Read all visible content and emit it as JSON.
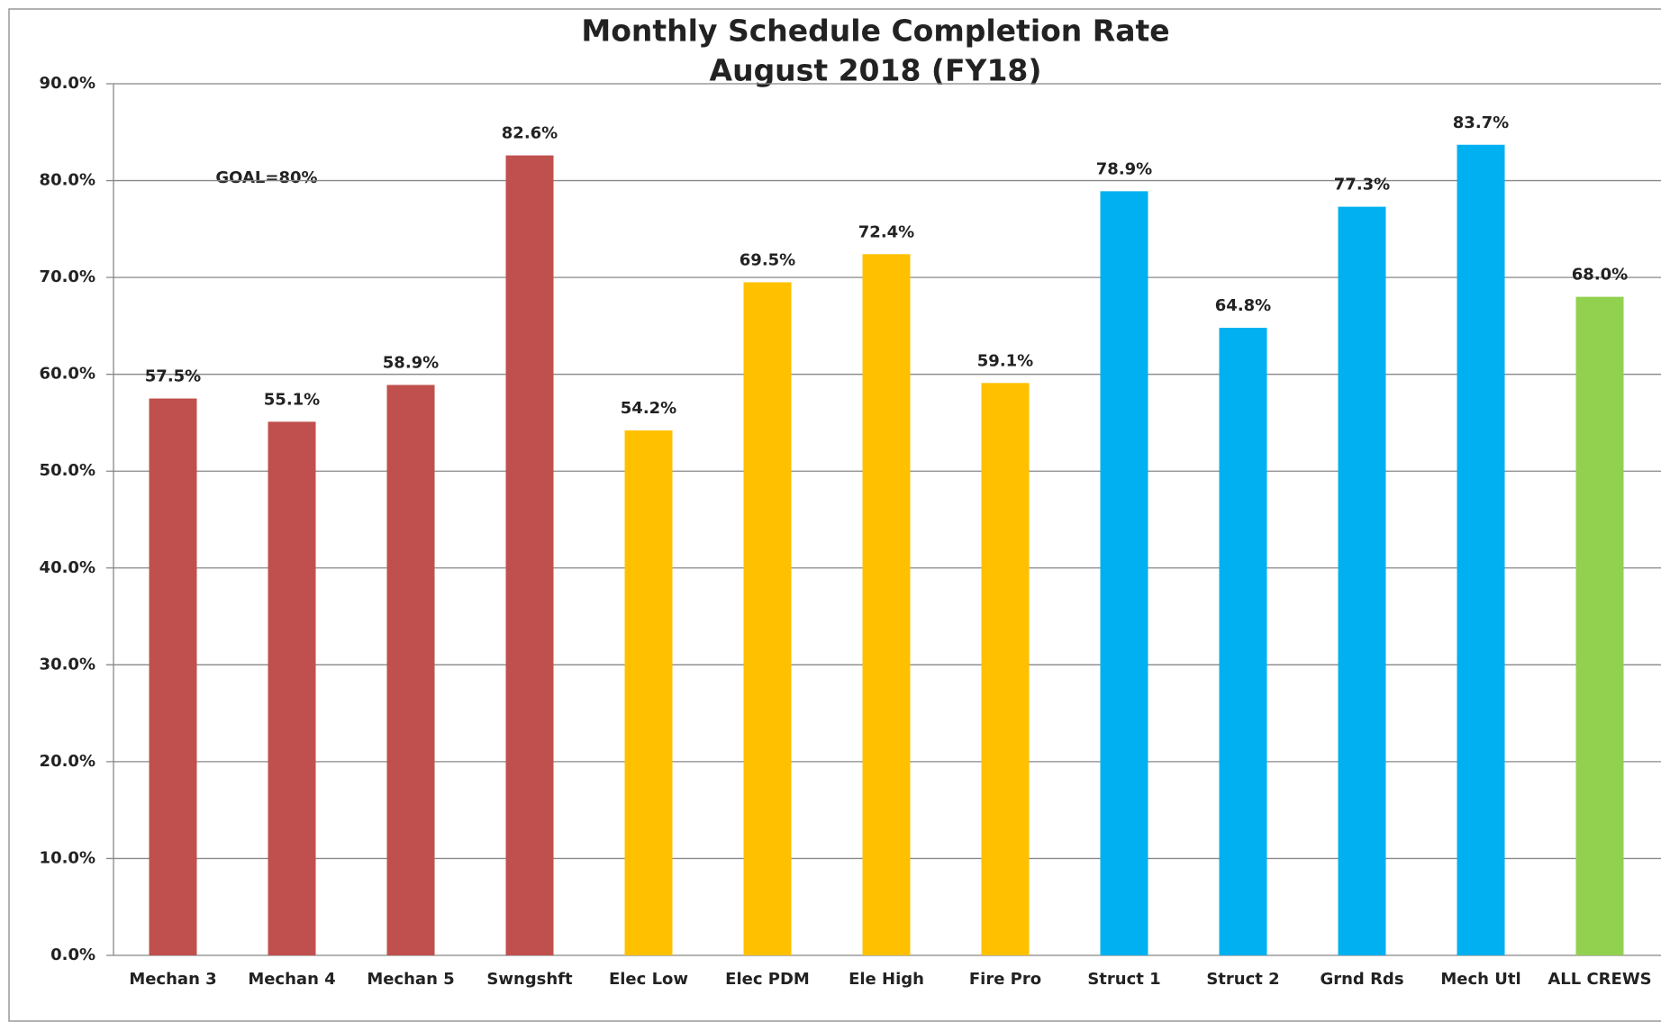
{
  "chart_data": {
    "type": "bar",
    "title": "Monthly Schedule Completion Rate",
    "subtitle": "August 2018 (FY18)",
    "annotation": "GOAL=80%",
    "categories": [
      "Mechan 3",
      "Mechan 4",
      "Mechan 5",
      "Swngshft",
      "Elec Low",
      "Elec PDM",
      "Ele High",
      "Fire Pro",
      "Struct 1",
      "Struct 2",
      "Grnd Rds",
      "Mech Utl",
      "ALL CREWS"
    ],
    "values": [
      57.5,
      55.1,
      58.9,
      82.6,
      54.2,
      69.5,
      72.4,
      59.1,
      78.9,
      64.8,
      77.3,
      83.7,
      68.0
    ],
    "value_labels": [
      "57.5%",
      "55.1%",
      "58.9%",
      "82.6%",
      "54.2%",
      "69.5%",
      "72.4%",
      "59.1%",
      "78.9%",
      "64.8%",
      "77.3%",
      "83.7%",
      "68.0%"
    ],
    "colors": [
      "#c0504d",
      "#c0504d",
      "#c0504d",
      "#c0504d",
      "#ffc000",
      "#ffc000",
      "#ffc000",
      "#ffc000",
      "#00b0f0",
      "#00b0f0",
      "#00b0f0",
      "#00b0f0",
      "#92d050"
    ],
    "ylim": [
      0,
      90
    ],
    "yticks": [
      {
        "value": 0,
        "label": "0.0%"
      },
      {
        "value": 10,
        "label": "10.0%"
      },
      {
        "value": 20,
        "label": "20.0%"
      },
      {
        "value": 30,
        "label": "30.0%"
      },
      {
        "value": 40,
        "label": "40.0%"
      },
      {
        "value": 50,
        "label": "50.0%"
      },
      {
        "value": 60,
        "label": "60.0%"
      },
      {
        "value": 70,
        "label": "70.0%"
      },
      {
        "value": 80,
        "label": "80.0%"
      },
      {
        "value": 90,
        "label": "90.0%"
      }
    ],
    "grid": true
  }
}
